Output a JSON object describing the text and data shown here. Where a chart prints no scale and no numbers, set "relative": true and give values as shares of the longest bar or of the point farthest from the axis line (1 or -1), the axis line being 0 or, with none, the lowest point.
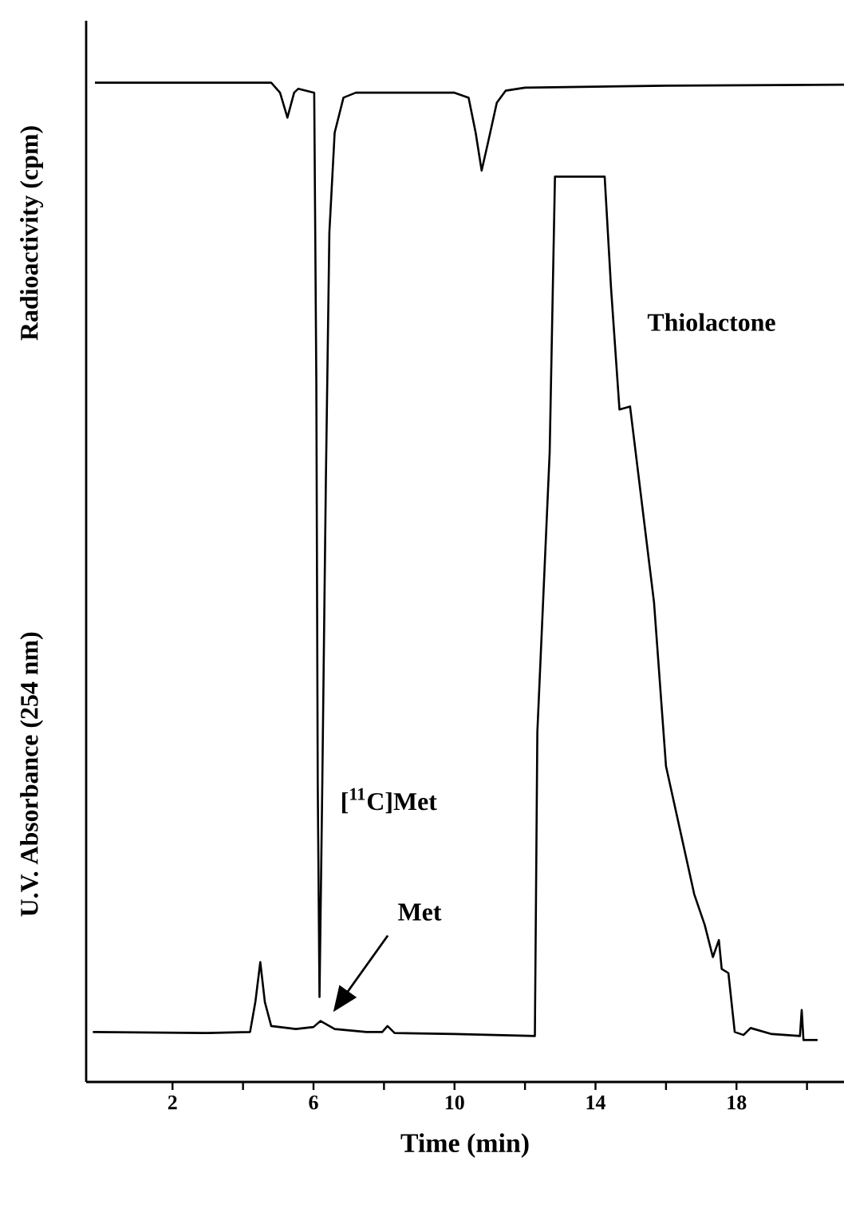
{
  "chart_data": {
    "type": "line",
    "relative": true,
    "xlabel": "Time (min)",
    "xlim": [
      -0.45,
      21.05
    ],
    "xticks": [
      2,
      {
        "value": 4,
        "label": null
      },
      6,
      {
        "value": 8,
        "label": null
      },
      10,
      {
        "value": 12,
        "label": null
      },
      14,
      {
        "value": 16,
        "label": null
      },
      18,
      {
        "value": 20,
        "label": null
      }
    ],
    "series": [
      {
        "color": "#000000",
        "x": [
          -0.2,
          2.0,
          4.8,
          5.05,
          5.26,
          5.45,
          5.57,
          6.02,
          6.08,
          6.12,
          6.17,
          6.25,
          6.35,
          6.45,
          6.6,
          6.85,
          7.2,
          10.0,
          10.4,
          10.6,
          10.77,
          10.95,
          11.2,
          11.45,
          12.0,
          16.0,
          21.05
        ],
        "values": [
          1.0,
          1.0,
          1.0,
          0.99,
          0.965,
          0.99,
          0.994,
          0.99,
          0.7,
          0.3,
          0.085,
          0.3,
          0.6,
          0.85,
          0.95,
          0.985,
          0.99,
          0.99,
          0.985,
          0.95,
          0.912,
          0.94,
          0.98,
          0.992,
          0.995,
          0.997,
          0.998
        ]
      },
      {
        "color": "#000000",
        "x": [
          -0.26,
          3.0,
          4.2,
          4.35,
          4.49,
          4.62,
          4.8,
          5.5,
          6.0,
          6.2,
          6.6,
          7.5,
          7.95,
          8.1,
          8.3,
          10.0,
          12.28,
          12.35,
          12.7,
          12.85,
          14.26,
          14.44,
          14.68,
          14.98,
          15.66,
          16.0,
          16.8,
          17.1,
          17.33,
          17.5,
          17.58,
          17.77,
          17.95,
          18.2,
          18.4,
          19.0,
          19.8,
          19.85,
          19.9,
          20.3
        ],
        "values": [
          0.05,
          0.049,
          0.05,
          0.08,
          0.12,
          0.08,
          0.056,
          0.053,
          0.055,
          0.061,
          0.053,
          0.05,
          0.05,
          0.056,
          0.049,
          0.048,
          0.046,
          0.35,
          0.63,
          0.906,
          0.906,
          0.795,
          0.673,
          0.676,
          0.48,
          0.316,
          0.188,
          0.157,
          0.125,
          0.142,
          0.113,
          0.109,
          0.05,
          0.047,
          0.054,
          0.048,
          0.046,
          0.072,
          0.042,
          0.042
        ]
      }
    ],
    "annotations": [
      "Radioactivity (cpm)",
      "U.V. Absorbance (254 nm)",
      "Thiolactone",
      "[$^{11}$C]Met",
      "Met"
    ]
  }
}
